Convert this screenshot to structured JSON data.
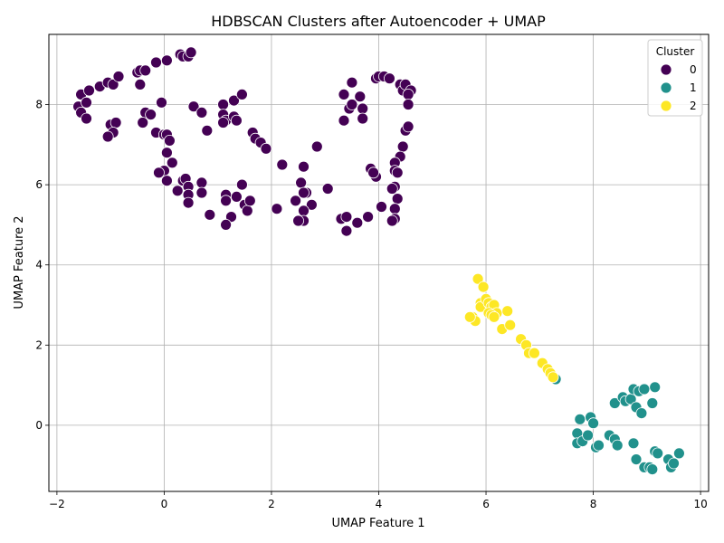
{
  "chart_data": {
    "type": "scatter",
    "title": "HDBSCAN Clusters after Autoencoder + UMAP",
    "xlabel": "UMAP Feature 1",
    "ylabel": "UMAP Feature 2",
    "xlim": [
      -2.15,
      10.15
    ],
    "ylim": [
      -1.65,
      9.75
    ],
    "xticks": [
      -2,
      0,
      2,
      4,
      6,
      8,
      10
    ],
    "yticks": [
      0,
      2,
      4,
      6,
      8
    ],
    "grid": true,
    "legend": {
      "title": "Cluster",
      "placement": "top-right"
    },
    "series": [
      {
        "name": "0",
        "color": "#440154",
        "points": [
          [
            -1.55,
            8.25
          ],
          [
            -1.6,
            7.95
          ],
          [
            -1.55,
            7.8
          ],
          [
            -1.45,
            8.05
          ],
          [
            -1.45,
            7.65
          ],
          [
            -1.4,
            8.35
          ],
          [
            -1.2,
            8.45
          ],
          [
            -1.05,
            8.55
          ],
          [
            -0.95,
            8.5
          ],
          [
            -0.85,
            8.7
          ],
          [
            -1.0,
            7.5
          ],
          [
            -0.9,
            7.55
          ],
          [
            -0.95,
            7.3
          ],
          [
            -1.05,
            7.2
          ],
          [
            -0.5,
            8.8
          ],
          [
            -0.45,
            8.85
          ],
          [
            -0.35,
            8.85
          ],
          [
            -0.45,
            8.5
          ],
          [
            -0.15,
            9.05
          ],
          [
            0.05,
            9.1
          ],
          [
            0.3,
            9.25
          ],
          [
            0.35,
            9.2
          ],
          [
            0.45,
            9.2
          ],
          [
            0.5,
            9.3
          ],
          [
            -0.05,
            8.05
          ],
          [
            -0.35,
            7.8
          ],
          [
            -0.4,
            7.55
          ],
          [
            -0.25,
            7.75
          ],
          [
            -0.15,
            7.3
          ],
          [
            0.0,
            7.25
          ],
          [
            0.05,
            7.25
          ],
          [
            0.1,
            7.1
          ],
          [
            0.05,
            6.8
          ],
          [
            0.15,
            6.55
          ],
          [
            0.0,
            6.35
          ],
          [
            -0.1,
            6.3
          ],
          [
            0.05,
            6.1
          ],
          [
            0.25,
            5.85
          ],
          [
            0.35,
            6.1
          ],
          [
            0.4,
            6.15
          ],
          [
            0.45,
            5.95
          ],
          [
            0.45,
            5.75
          ],
          [
            0.45,
            5.55
          ],
          [
            0.7,
            6.05
          ],
          [
            0.7,
            5.8
          ],
          [
            0.55,
            7.95
          ],
          [
            0.7,
            7.8
          ],
          [
            0.8,
            7.35
          ],
          [
            1.1,
            8.0
          ],
          [
            1.1,
            7.75
          ],
          [
            1.15,
            7.6
          ],
          [
            1.1,
            7.55
          ],
          [
            1.3,
            8.1
          ],
          [
            1.3,
            7.7
          ],
          [
            1.35,
            7.6
          ],
          [
            1.45,
            8.25
          ],
          [
            1.65,
            7.3
          ],
          [
            1.7,
            7.15
          ],
          [
            1.8,
            7.05
          ],
          [
            1.9,
            6.9
          ],
          [
            1.45,
            6.0
          ],
          [
            1.35,
            5.7
          ],
          [
            1.5,
            5.5
          ],
          [
            1.55,
            5.35
          ],
          [
            1.6,
            5.6
          ],
          [
            1.15,
            5.75
          ],
          [
            1.15,
            5.6
          ],
          [
            1.25,
            5.2
          ],
          [
            1.15,
            5.0
          ],
          [
            0.85,
            5.25
          ],
          [
            2.2,
            6.5
          ],
          [
            2.6,
            6.45
          ],
          [
            2.55,
            6.05
          ],
          [
            2.65,
            5.8
          ],
          [
            2.6,
            5.8
          ],
          [
            2.45,
            5.6
          ],
          [
            2.75,
            5.5
          ],
          [
            2.6,
            5.35
          ],
          [
            2.6,
            5.1
          ],
          [
            2.5,
            5.1
          ],
          [
            2.1,
            5.4
          ],
          [
            2.85,
            6.95
          ],
          [
            3.05,
            5.9
          ],
          [
            3.3,
            5.15
          ],
          [
            3.4,
            5.2
          ],
          [
            3.4,
            4.85
          ],
          [
            3.6,
            5.05
          ],
          [
            3.8,
            5.2
          ],
          [
            3.35,
            7.6
          ],
          [
            3.45,
            7.9
          ],
          [
            3.5,
            8.0
          ],
          [
            3.7,
            7.9
          ],
          [
            3.7,
            7.65
          ],
          [
            3.65,
            8.2
          ],
          [
            3.35,
            8.25
          ],
          [
            3.5,
            8.55
          ],
          [
            3.85,
            6.4
          ],
          [
            3.95,
            6.2
          ],
          [
            3.9,
            6.3
          ],
          [
            3.95,
            8.65
          ],
          [
            4.0,
            8.7
          ],
          [
            4.1,
            8.7
          ],
          [
            4.2,
            8.65
          ],
          [
            4.4,
            8.5
          ],
          [
            4.45,
            8.35
          ],
          [
            4.5,
            8.5
          ],
          [
            4.6,
            8.35
          ],
          [
            4.55,
            8.25
          ],
          [
            4.55,
            8.0
          ],
          [
            4.5,
            7.35
          ],
          [
            4.55,
            7.45
          ],
          [
            4.45,
            6.95
          ],
          [
            4.4,
            6.7
          ],
          [
            4.3,
            6.55
          ],
          [
            4.3,
            6.35
          ],
          [
            4.35,
            6.3
          ],
          [
            4.3,
            5.95
          ],
          [
            4.25,
            5.9
          ],
          [
            4.35,
            5.65
          ],
          [
            4.3,
            5.4
          ],
          [
            4.3,
            5.15
          ],
          [
            4.25,
            5.1
          ],
          [
            4.05,
            5.45
          ]
        ]
      },
      {
        "name": "1",
        "color": "#21918c",
        "points": [
          [
            7.3,
            1.15
          ],
          [
            8.4,
            0.55
          ],
          [
            8.55,
            0.7
          ],
          [
            8.6,
            0.6
          ],
          [
            8.7,
            0.65
          ],
          [
            8.75,
            0.9
          ],
          [
            8.85,
            0.85
          ],
          [
            8.95,
            0.9
          ],
          [
            9.15,
            0.95
          ],
          [
            8.8,
            0.45
          ],
          [
            8.9,
            0.3
          ],
          [
            9.1,
            0.55
          ],
          [
            7.75,
            0.15
          ],
          [
            7.95,
            0.2
          ],
          [
            8.0,
            0.05
          ],
          [
            7.7,
            -0.2
          ],
          [
            7.7,
            -0.45
          ],
          [
            7.8,
            -0.4
          ],
          [
            7.9,
            -0.25
          ],
          [
            8.05,
            -0.55
          ],
          [
            8.1,
            -0.5
          ],
          [
            8.3,
            -0.25
          ],
          [
            8.4,
            -0.35
          ],
          [
            8.45,
            -0.5
          ],
          [
            8.75,
            -0.45
          ],
          [
            8.8,
            -0.85
          ],
          [
            8.95,
            -1.05
          ],
          [
            9.05,
            -1.05
          ],
          [
            9.1,
            -1.1
          ],
          [
            9.15,
            -0.65
          ],
          [
            9.2,
            -0.7
          ],
          [
            9.4,
            -0.85
          ],
          [
            9.45,
            -1.05
          ],
          [
            9.5,
            -0.95
          ],
          [
            9.6,
            -0.7
          ]
        ]
      },
      {
        "name": "2",
        "color": "#fde725",
        "points": [
          [
            5.85,
            3.65
          ],
          [
            5.95,
            3.45
          ],
          [
            5.9,
            3.05
          ],
          [
            5.9,
            2.95
          ],
          [
            6.0,
            3.15
          ],
          [
            6.05,
            3.05
          ],
          [
            6.1,
            2.95
          ],
          [
            6.15,
            3.0
          ],
          [
            6.2,
            2.8
          ],
          [
            6.4,
            2.85
          ],
          [
            6.05,
            2.8
          ],
          [
            6.1,
            2.75
          ],
          [
            6.15,
            2.7
          ],
          [
            5.75,
            2.7
          ],
          [
            5.8,
            2.6
          ],
          [
            5.7,
            2.7
          ],
          [
            6.3,
            2.4
          ],
          [
            6.45,
            2.5
          ],
          [
            6.65,
            2.15
          ],
          [
            6.75,
            2.0
          ],
          [
            6.8,
            1.8
          ],
          [
            6.9,
            1.8
          ],
          [
            7.05,
            1.55
          ],
          [
            7.15,
            1.4
          ],
          [
            7.2,
            1.3
          ],
          [
            7.25,
            1.2
          ]
        ]
      }
    ]
  }
}
